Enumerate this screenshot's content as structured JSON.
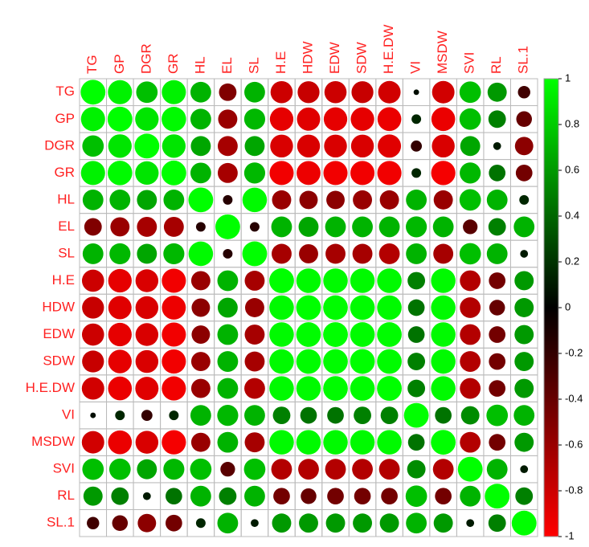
{
  "chart_data": {
    "type": "correlation",
    "variables": [
      "TG",
      "GP",
      "DGR",
      "GR",
      "HL",
      "EL",
      "SL",
      "H.E",
      "HDW",
      "EDW",
      "SDW",
      "H.E.DW",
      "VI",
      "MSDW",
      "SVI",
      "RL",
      "SL.1"
    ],
    "matrix": [
      [
        1,
        0.95,
        0.75,
        0.95,
        0.7,
        -0.5,
        0.7,
        -0.8,
        -0.78,
        -0.8,
        -0.78,
        -0.82,
        0.05,
        -0.82,
        0.75,
        0.6,
        -0.25
      ],
      [
        0.95,
        1,
        0.9,
        0.98,
        0.7,
        -0.6,
        0.72,
        -0.9,
        -0.88,
        -0.9,
        -0.9,
        -0.92,
        0.15,
        -0.92,
        0.75,
        0.5,
        -0.4
      ],
      [
        0.75,
        0.9,
        1,
        0.9,
        0.65,
        -0.65,
        0.65,
        -0.85,
        -0.85,
        -0.85,
        -0.85,
        -0.88,
        -0.2,
        -0.85,
        0.65,
        0.1,
        -0.55
      ],
      [
        0.95,
        0.98,
        0.9,
        1,
        0.7,
        -0.65,
        0.72,
        -0.95,
        -0.93,
        -0.95,
        -0.95,
        -0.95,
        0.15,
        -0.96,
        0.72,
        0.45,
        -0.45
      ],
      [
        0.7,
        0.7,
        0.65,
        0.7,
        1,
        -0.15,
        0.98,
        -0.6,
        -0.55,
        -0.55,
        -0.6,
        -0.6,
        0.7,
        -0.6,
        0.75,
        0.7,
        0.15
      ],
      [
        -0.5,
        -0.6,
        -0.65,
        -0.65,
        -0.15,
        1,
        -0.15,
        0.7,
        0.65,
        0.7,
        0.7,
        0.7,
        0.72,
        0.7,
        -0.35,
        0.5,
        0.7
      ],
      [
        0.7,
        0.72,
        0.65,
        0.72,
        0.98,
        -0.15,
        1,
        -0.65,
        -0.6,
        -0.65,
        -0.65,
        -0.7,
        0.7,
        -0.65,
        0.75,
        0.7,
        0.1
      ],
      [
        -0.8,
        -0.9,
        -0.85,
        -0.95,
        -0.6,
        0.7,
        -0.65,
        1,
        0.98,
        0.98,
        0.98,
        0.98,
        0.5,
        0.98,
        -0.7,
        -0.45,
        0.6
      ],
      [
        -0.78,
        -0.88,
        -0.85,
        -0.93,
        -0.55,
        0.65,
        -0.6,
        0.98,
        1,
        0.99,
        0.99,
        0.98,
        0.45,
        0.98,
        -0.7,
        -0.4,
        0.6
      ],
      [
        -0.8,
        -0.9,
        -0.85,
        -0.95,
        -0.55,
        0.7,
        -0.65,
        0.98,
        0.99,
        1,
        0.99,
        0.99,
        0.45,
        0.98,
        -0.7,
        -0.45,
        0.6
      ],
      [
        -0.78,
        -0.9,
        -0.85,
        -0.95,
        -0.6,
        0.7,
        -0.65,
        0.98,
        0.99,
        0.99,
        1,
        0.99,
        0.5,
        0.98,
        -0.7,
        -0.45,
        0.6
      ],
      [
        -0.82,
        -0.92,
        -0.88,
        -0.95,
        -0.6,
        0.7,
        -0.7,
        0.98,
        0.98,
        0.99,
        0.99,
        1,
        0.5,
        0.98,
        -0.7,
        -0.45,
        0.6
      ],
      [
        0.05,
        0.15,
        -0.2,
        0.15,
        0.7,
        0.72,
        0.7,
        0.5,
        0.45,
        0.45,
        0.5,
        0.5,
        1,
        0.45,
        0.55,
        0.75,
        0.7
      ],
      [
        -0.82,
        -0.92,
        -0.85,
        -0.96,
        -0.6,
        0.7,
        -0.65,
        0.98,
        0.98,
        0.98,
        0.98,
        0.98,
        0.45,
        1,
        -0.7,
        -0.45,
        0.6
      ],
      [
        0.75,
        0.75,
        0.65,
        0.72,
        0.75,
        -0.35,
        0.75,
        -0.7,
        -0.7,
        -0.7,
        -0.7,
        -0.7,
        0.55,
        -0.7,
        1,
        0.7,
        0.1
      ],
      [
        0.6,
        0.5,
        0.1,
        0.45,
        0.7,
        0.5,
        0.7,
        -0.45,
        -0.4,
        -0.45,
        -0.45,
        -0.45,
        0.75,
        -0.45,
        0.7,
        1,
        0.5
      ],
      [
        -0.25,
        -0.4,
        -0.55,
        -0.45,
        0.15,
        0.7,
        0.1,
        0.6,
        0.6,
        0.6,
        0.6,
        0.6,
        0.7,
        0.6,
        0.1,
        0.5,
        1
      ]
    ],
    "colors": [
      "#ff0000",
      "#000000",
      "#00ff00"
    ],
    "clim": [
      -1,
      1
    ],
    "cticks": [
      1,
      0.8,
      0.6,
      0.4,
      0.2,
      0,
      -0.2,
      -0.4,
      -0.6,
      -0.8,
      -1
    ]
  }
}
